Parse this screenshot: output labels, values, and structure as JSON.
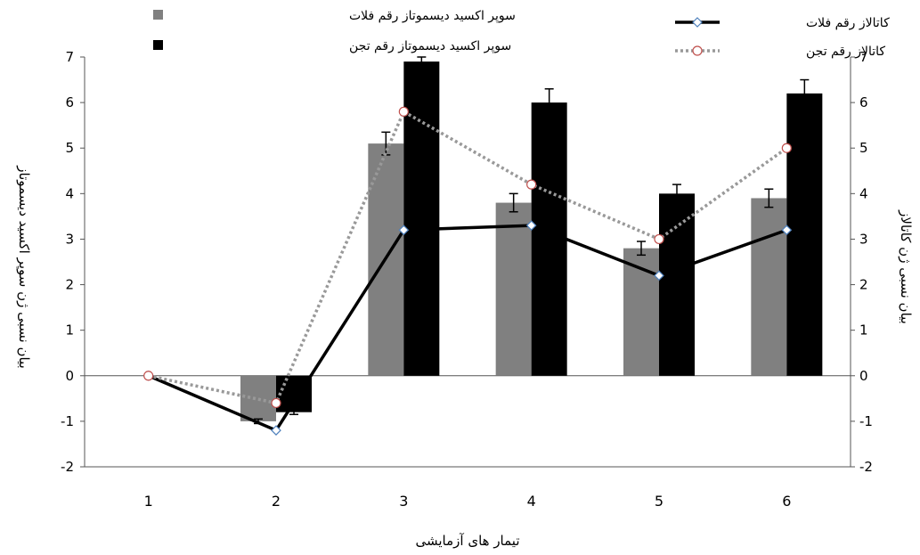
{
  "chart_data": {
    "type": "bar",
    "xlabel": "تیمار های آزمایشی",
    "ylabel_left": "بیان نسبی ژن سوپر اکسید دیسموتاز",
    "ylabel_right": "بیان نسبی ژن کاتالاز",
    "categories": [
      "1",
      "2",
      "3",
      "4",
      "5",
      "6"
    ],
    "ylim": [
      -2,
      7
    ],
    "yticks": [
      "-2",
      "-1",
      "0",
      "1",
      "2",
      "3",
      "4",
      "5",
      "6",
      "7"
    ],
    "bar_series": [
      {
        "name": "سوپر اکسید دیسموتاز رقم فلات",
        "color": "#808080",
        "values": [
          0,
          -1.0,
          5.1,
          3.8,
          2.8,
          3.9
        ],
        "errors": [
          0,
          0.05,
          0.25,
          0.2,
          0.15,
          0.2
        ]
      },
      {
        "name": "سوپر اکسید دیسموتاز رقم تجن",
        "color": "#000000",
        "values": [
          0,
          -0.8,
          6.9,
          6.0,
          4.0,
          6.2
        ],
        "errors": [
          0,
          0.05,
          0.1,
          0.3,
          0.2,
          0.3
        ]
      }
    ],
    "line_series": [
      {
        "name": "کاتالاز رقم فلات",
        "color": "#000000",
        "style": "solid",
        "marker": "diamond",
        "values": [
          0,
          -1.2,
          3.2,
          3.3,
          2.2,
          3.2
        ]
      },
      {
        "name": "کاتالاز رقم تجن",
        "color": "#999999",
        "style": "dotted",
        "marker": "circle",
        "marker_edge": "#c0504d",
        "values": [
          0,
          -0.6,
          5.8,
          4.2,
          3.0,
          5.0
        ]
      }
    ],
    "grid": false,
    "legend": "top"
  }
}
